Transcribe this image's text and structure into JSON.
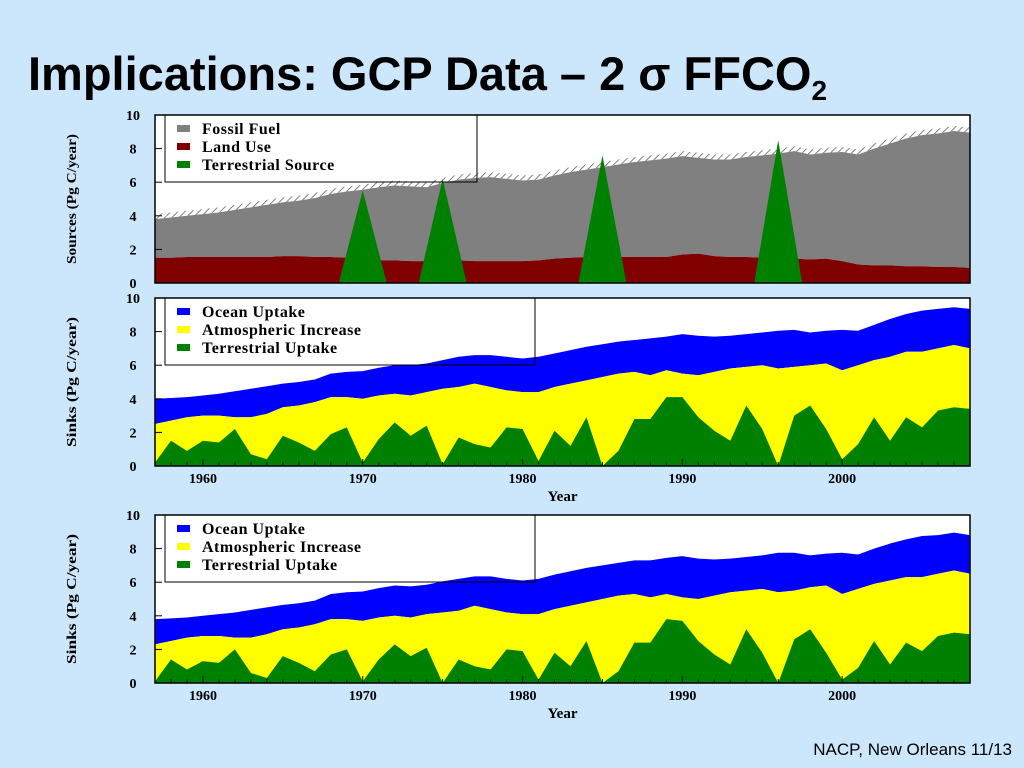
{
  "slide": {
    "title_main": "Implications: GCP Data – 2 σ FFCO",
    "title_sub": "2",
    "footer": "NACP, New Orleans 11/13"
  },
  "colors": {
    "background": "#cce6fb",
    "fossil_fuel": "#808080",
    "land_use": "#800000",
    "terrestrial_green": "#008000",
    "ocean_uptake": "#0000ff",
    "atmospheric_increase": "#ffff00"
  },
  "chart_data": [
    {
      "type": "area",
      "name": "sources",
      "ylabel": "Sources (Pg C/year)",
      "ylim": [
        0,
        10
      ],
      "yticks": [
        "0",
        "2",
        "4",
        "6",
        "8",
        "10"
      ],
      "xlim": [
        1957,
        2008
      ],
      "xticks": [],
      "xlabel": "",
      "legend_placement": "top-left",
      "legend": [
        "Fossil Fuel",
        "Land Use",
        "Terrestrial Source"
      ],
      "x": [
        1957,
        1958,
        1959,
        1960,
        1961,
        1962,
        1963,
        1964,
        1965,
        1966,
        1967,
        1968,
        1969,
        1970,
        1971,
        1972,
        1973,
        1974,
        1975,
        1976,
        1977,
        1978,
        1979,
        1980,
        1981,
        1982,
        1983,
        1984,
        1985,
        1986,
        1987,
        1988,
        1989,
        1990,
        1991,
        1992,
        1993,
        1994,
        1995,
        1996,
        1997,
        1998,
        1999,
        2000,
        2001,
        2002,
        2003,
        2004,
        2005,
        2006,
        2007,
        2008
      ],
      "series": [
        {
          "name": "Land Use",
          "values": [
            1.5,
            1.5,
            1.55,
            1.55,
            1.55,
            1.55,
            1.55,
            1.55,
            1.6,
            1.6,
            1.55,
            1.55,
            1.5,
            1.4,
            1.35,
            1.35,
            1.3,
            1.3,
            1.35,
            1.35,
            1.3,
            1.3,
            1.3,
            1.3,
            1.35,
            1.45,
            1.5,
            1.55,
            1.55,
            1.55,
            1.55,
            1.55,
            1.55,
            1.7,
            1.75,
            1.6,
            1.55,
            1.55,
            1.5,
            1.5,
            1.45,
            1.4,
            1.45,
            1.3,
            1.1,
            1.05,
            1.05,
            1.0,
            1.0,
            0.95,
            0.95,
            0.9
          ]
        },
        {
          "name": "Fossil Fuel",
          "values": [
            3.8,
            3.9,
            4.0,
            4.1,
            4.2,
            4.35,
            4.5,
            4.65,
            4.8,
            4.9,
            5.05,
            5.3,
            5.45,
            5.55,
            5.7,
            5.8,
            5.75,
            5.7,
            5.95,
            6.15,
            6.25,
            6.3,
            6.2,
            6.1,
            6.15,
            6.4,
            6.6,
            6.75,
            6.9,
            7.05,
            7.2,
            7.3,
            7.4,
            7.55,
            7.45,
            7.35,
            7.35,
            7.5,
            7.6,
            7.7,
            7.85,
            7.65,
            7.75,
            7.8,
            7.65,
            8.0,
            8.3,
            8.6,
            8.8,
            8.9,
            9.05,
            8.95
          ]
        },
        {
          "name": "Terrestrial Source",
          "spikes": [
            {
              "year": 1970,
              "value": 5.5
            },
            {
              "year": 1975,
              "value": 6.2
            },
            {
              "year": 1985,
              "value": 7.6
            },
            {
              "year": 1996,
              "value": 8.5
            }
          ]
        }
      ]
    },
    {
      "type": "area",
      "name": "sinks_upper",
      "ylabel": "Sinks (Pg C/year)",
      "ylim": [
        0,
        10
      ],
      "yticks": [
        "0",
        "2",
        "4",
        "6",
        "8",
        "10"
      ],
      "xlim": [
        1957,
        2008
      ],
      "xticks": [
        "1960",
        "1970",
        "1980",
        "1990",
        "2000"
      ],
      "xlabel": "Year",
      "legend_placement": "top-left",
      "legend": [
        "Ocean Uptake",
        "Atmospheric Increase",
        "Terrestrial Uptake"
      ],
      "x": [
        1957,
        1958,
        1959,
        1960,
        1961,
        1962,
        1963,
        1964,
        1965,
        1966,
        1967,
        1968,
        1969,
        1970,
        1971,
        1972,
        1973,
        1974,
        1975,
        1976,
        1977,
        1978,
        1979,
        1980,
        1981,
        1982,
        1983,
        1984,
        1985,
        1986,
        1987,
        1988,
        1989,
        1990,
        1991,
        1992,
        1993,
        1994,
        1995,
        1996,
        1997,
        1998,
        1999,
        2000,
        2001,
        2002,
        2003,
        2004,
        2005,
        2006,
        2007,
        2008
      ],
      "series": [
        {
          "name": "Terrestrial Uptake",
          "values": [
            0.2,
            1.5,
            0.9,
            1.5,
            1.4,
            2.2,
            0.7,
            0.4,
            1.8,
            1.4,
            0.9,
            1.9,
            2.3,
            0.2,
            1.6,
            2.6,
            1.8,
            2.4,
            0.1,
            1.7,
            1.3,
            1.1,
            2.3,
            2.2,
            0.3,
            2.1,
            1.2,
            2.9,
            0.0,
            0.9,
            2.8,
            2.8,
            4.1,
            4.1,
            2.9,
            2.1,
            1.5,
            3.6,
            2.2,
            0.0,
            3.0,
            3.6,
            2.2,
            0.4,
            1.3,
            2.9,
            1.5,
            2.9,
            2.3,
            3.3,
            3.5,
            3.4
          ]
        },
        {
          "name": "Atmospheric Increase",
          "values": [
            2.5,
            2.7,
            2.9,
            3.0,
            3.0,
            2.9,
            2.9,
            3.1,
            3.5,
            3.6,
            3.8,
            4.1,
            4.1,
            4.0,
            4.2,
            4.3,
            4.2,
            4.4,
            4.6,
            4.7,
            4.9,
            4.7,
            4.5,
            4.4,
            4.4,
            4.7,
            4.9,
            5.1,
            5.3,
            5.5,
            5.6,
            5.4,
            5.7,
            5.5,
            5.4,
            5.6,
            5.8,
            5.9,
            6.0,
            5.8,
            5.9,
            6.0,
            6.1,
            5.7,
            6.0,
            6.3,
            6.5,
            6.8,
            6.8,
            7.0,
            7.2,
            7.0
          ]
        },
        {
          "name": "Ocean Uptake",
          "values": [
            4.0,
            4.05,
            4.1,
            4.2,
            4.3,
            4.45,
            4.6,
            4.75,
            4.9,
            5.0,
            5.15,
            5.5,
            5.6,
            5.65,
            5.85,
            6.0,
            6.0,
            6.1,
            6.3,
            6.5,
            6.6,
            6.6,
            6.5,
            6.4,
            6.5,
            6.7,
            6.9,
            7.1,
            7.25,
            7.4,
            7.5,
            7.6,
            7.7,
            7.85,
            7.75,
            7.7,
            7.75,
            7.85,
            7.95,
            8.05,
            8.1,
            7.95,
            8.05,
            8.1,
            8.05,
            8.4,
            8.75,
            9.05,
            9.25,
            9.35,
            9.45,
            9.35
          ]
        }
      ]
    },
    {
      "type": "area",
      "name": "sinks_lower",
      "ylabel": "Sinks (Pg C/year)",
      "ylim": [
        0,
        10
      ],
      "yticks": [
        "0",
        "2",
        "4",
        "6",
        "8",
        "10"
      ],
      "xlim": [
        1957,
        2008
      ],
      "xticks": [
        "1960",
        "1970",
        "1980",
        "1990",
        "2000"
      ],
      "xlabel": "Year",
      "legend_placement": "top-left",
      "legend": [
        "Ocean Uptake",
        "Atmospheric Increase",
        "Terrestrial Uptake"
      ],
      "x": [
        1957,
        1958,
        1959,
        1960,
        1961,
        1962,
        1963,
        1964,
        1965,
        1966,
        1967,
        1968,
        1969,
        1970,
        1971,
        1972,
        1973,
        1974,
        1975,
        1976,
        1977,
        1978,
        1979,
        1980,
        1981,
        1982,
        1983,
        1984,
        1985,
        1986,
        1987,
        1988,
        1989,
        1990,
        1991,
        1992,
        1993,
        1994,
        1995,
        1996,
        1997,
        1998,
        1999,
        2000,
        2001,
        2002,
        2003,
        2004,
        2005,
        2006,
        2007,
        2008
      ],
      "series": [
        {
          "name": "Terrestrial Uptake",
          "values": [
            0.1,
            1.4,
            0.8,
            1.3,
            1.2,
            2.0,
            0.6,
            0.3,
            1.6,
            1.2,
            0.7,
            1.7,
            2.0,
            0.1,
            1.4,
            2.3,
            1.6,
            2.1,
            0.0,
            1.4,
            1.0,
            0.8,
            2.0,
            1.9,
            0.2,
            1.8,
            1.0,
            2.5,
            0.0,
            0.7,
            2.4,
            2.4,
            3.8,
            3.7,
            2.5,
            1.7,
            1.1,
            3.2,
            1.8,
            0.0,
            2.6,
            3.2,
            1.8,
            0.2,
            0.9,
            2.5,
            1.1,
            2.4,
            1.9,
            2.8,
            3.0,
            2.9
          ]
        },
        {
          "name": "Atmospheric Increase",
          "values": [
            2.3,
            2.5,
            2.7,
            2.8,
            2.8,
            2.7,
            2.7,
            2.9,
            3.2,
            3.3,
            3.5,
            3.8,
            3.8,
            3.7,
            3.9,
            4.0,
            3.9,
            4.1,
            4.2,
            4.3,
            4.6,
            4.4,
            4.2,
            4.1,
            4.1,
            4.4,
            4.6,
            4.8,
            5.0,
            5.2,
            5.3,
            5.1,
            5.3,
            5.1,
            5.0,
            5.2,
            5.4,
            5.5,
            5.6,
            5.4,
            5.5,
            5.7,
            5.8,
            5.3,
            5.6,
            5.9,
            6.1,
            6.3,
            6.3,
            6.5,
            6.7,
            6.5
          ]
        },
        {
          "name": "Ocean Uptake",
          "values": [
            3.8,
            3.85,
            3.9,
            4.0,
            4.1,
            4.2,
            4.35,
            4.5,
            4.65,
            4.75,
            4.9,
            5.3,
            5.4,
            5.45,
            5.65,
            5.8,
            5.75,
            5.85,
            6.05,
            6.2,
            6.35,
            6.35,
            6.2,
            6.1,
            6.2,
            6.45,
            6.65,
            6.85,
            7.0,
            7.15,
            7.3,
            7.3,
            7.45,
            7.55,
            7.4,
            7.35,
            7.4,
            7.5,
            7.6,
            7.75,
            7.75,
            7.6,
            7.7,
            7.75,
            7.65,
            8.0,
            8.3,
            8.55,
            8.75,
            8.8,
            8.95,
            8.8
          ]
        }
      ]
    }
  ]
}
